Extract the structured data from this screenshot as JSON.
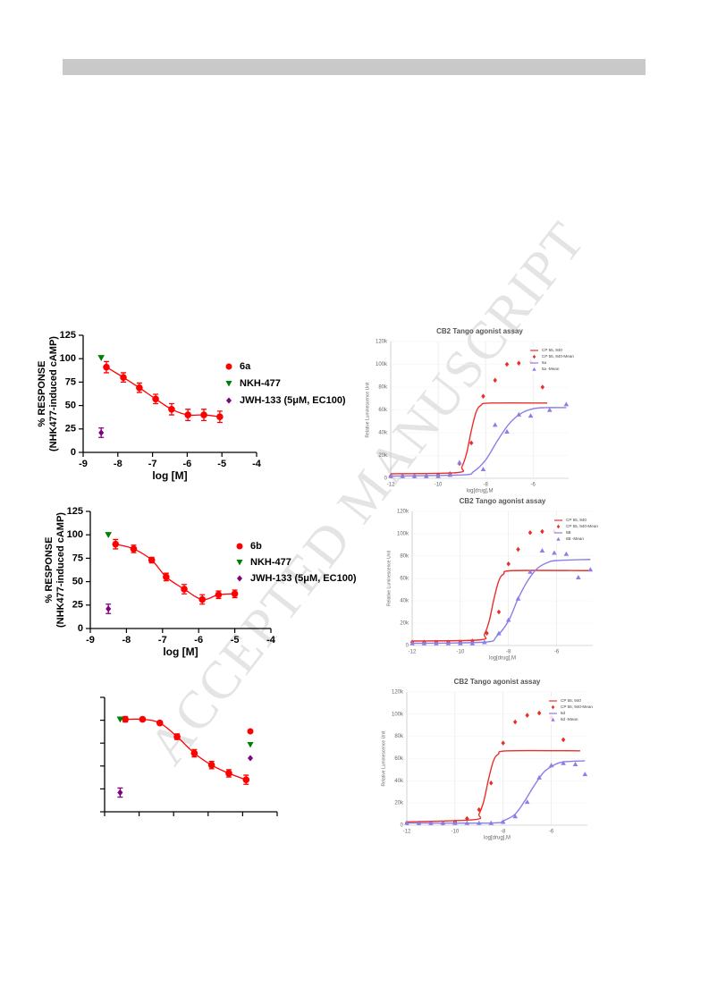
{
  "watermark": "ACCEPTED MANUSCRIPT",
  "chart_data": [
    {
      "type": "scatter",
      "xlabel": "log [M]",
      "ylabel": [
        "% RESPONSE",
        "(NHK477-induced cAMP)"
      ],
      "xlim": [
        -9,
        -4
      ],
      "ylim": [
        0,
        125
      ],
      "xticks": [
        -9,
        -8,
        -7,
        -6,
        -5,
        -4
      ],
      "yticks": [
        0,
        25,
        50,
        75,
        100,
        125
      ],
      "series": [
        {
          "name": "6a",
          "color": "#ff0000",
          "marker": "circle",
          "fit": true,
          "x": [
            -8.33,
            -7.84,
            -7.38,
            -6.91,
            -6.45,
            -5.98,
            -5.52,
            -5.06
          ],
          "values": [
            91,
            80,
            69,
            57,
            46,
            40,
            40,
            38
          ],
          "errors": [
            6,
            5,
            5,
            5,
            6,
            6,
            6,
            6
          ]
        },
        {
          "name": "NKH-477",
          "color": "#008000",
          "marker": "triangle-down",
          "x": [
            -8.48
          ],
          "values": [
            101
          ]
        },
        {
          "name": "JWH-133 (5μM, EC100)",
          "color": "#800080",
          "marker": "diamond",
          "x": [
            -8.48
          ],
          "values": [
            21
          ],
          "errors": [
            5
          ]
        }
      ]
    },
    {
      "type": "scatter",
      "title": "CB2 Tango agonist assay",
      "xlabel": "log[drug],M",
      "ylabel": "Relative Luminescence Unit",
      "xlim": [
        -12,
        -4.5
      ],
      "ylim": [
        0,
        120000
      ],
      "xticks": [
        -12,
        -10,
        -8,
        -6
      ],
      "yticks": [
        0,
        {
          "value": 20000,
          "label": "20k"
        },
        {
          "value": 40000,
          "label": "40k"
        },
        {
          "value": 60000,
          "label": "60k"
        },
        {
          "value": 80000,
          "label": "80k"
        },
        {
          "value": 100000,
          "label": "100k"
        },
        {
          "value": 120000,
          "label": "120k"
        }
      ],
      "grid": true,
      "series": [
        {
          "name": "CP 55, 940",
          "color": "#e8302a",
          "line": true,
          "x": [
            -12,
            -9.2,
            -9,
            -8.8,
            -8.6,
            -8.4,
            -8.2,
            -7.8,
            -5.4
          ],
          "values": [
            4000,
            5000,
            10000,
            22000,
            42000,
            58000,
            64000,
            66000,
            66000
          ]
        },
        {
          "name": "CP 55, 940-Mean",
          "color": "#e8302a",
          "marker": "diamond",
          "x": [
            -12,
            -11.5,
            -11,
            -10.5,
            -10,
            -9.5,
            -9.1,
            -8.6,
            -8.1,
            -7.6,
            -7.1,
            -6.6,
            -6.1,
            -5.6
          ],
          "values": [
            2000,
            2000,
            2000,
            2000,
            3000,
            4000,
            13000,
            31000,
            72000,
            86000,
            100000,
            101000,
            102000,
            80000
          ]
        },
        {
          "name": "6a",
          "color": "#8a7fe8",
          "line": true,
          "x": [
            -12,
            -9,
            -8.5,
            -8,
            -7.5,
            -7,
            -6.5,
            -6,
            -5.5,
            -4.6
          ],
          "values": [
            2000,
            3000,
            6000,
            16000,
            33000,
            48000,
            57000,
            61000,
            62000,
            62000
          ]
        },
        {
          "name": "6a -Mean",
          "color": "#8a7fe8",
          "marker": "triangle-up",
          "x": [
            -12,
            -11.5,
            -11,
            -10.5,
            -10,
            -9.5,
            -9.1,
            -8.1,
            -7.6,
            -7.1,
            -6.6,
            -6.1,
            -5.3,
            -4.6
          ],
          "values": [
            2000,
            2000,
            2000,
            2000,
            2000,
            3000,
            14000,
            8000,
            47000,
            41000,
            56000,
            55000,
            60000,
            65000
          ]
        }
      ]
    },
    {
      "type": "scatter",
      "xlabel": "log [M]",
      "ylabel": [
        "% RESPONSE",
        "(NHK477-induced cAMP)"
      ],
      "xlim": [
        -9,
        -4
      ],
      "ylim": [
        0,
        125
      ],
      "xticks": [
        -9,
        -8,
        -7,
        -6,
        -5,
        -4
      ],
      "yticks": [
        0,
        25,
        50,
        75,
        100,
        125
      ],
      "series": [
        {
          "name": "6b",
          "color": "#ff0000",
          "marker": "circle",
          "fit": true,
          "x": [
            -8.3,
            -7.8,
            -7.3,
            -6.9,
            -6.4,
            -5.9,
            -5.45,
            -5.0
          ],
          "values": [
            90,
            85,
            73,
            55,
            42,
            31,
            36,
            37
          ],
          "errors": [
            5,
            4,
            3,
            4,
            5,
            5,
            4,
            4
          ]
        },
        {
          "name": "NKH-477",
          "color": "#008000",
          "marker": "triangle-down",
          "x": [
            -8.5
          ],
          "values": [
            100
          ]
        },
        {
          "name": "JWH-133 (5μM, EC100)",
          "color": "#800080",
          "marker": "diamond",
          "x": [
            -8.5
          ],
          "values": [
            21
          ],
          "errors": [
            5
          ]
        }
      ]
    },
    {
      "type": "scatter",
      "title": "CB2 Tango agonist assay",
      "xlabel": "log[drug],M",
      "ylabel": "Relative Luminescence Unit",
      "xlim": [
        -12,
        -4.5
      ],
      "ylim": [
        0,
        120000
      ],
      "xticks": [
        -12,
        -10,
        -8,
        -6
      ],
      "yticks": [
        0,
        {
          "value": 20000,
          "label": "20k"
        },
        {
          "value": 40000,
          "label": "40k"
        },
        {
          "value": 60000,
          "label": "60k"
        },
        {
          "value": 80000,
          "label": "80k"
        },
        {
          "value": 100000,
          "label": "100k"
        },
        {
          "value": 120000,
          "label": "120k"
        }
      ],
      "grid": true,
      "series": [
        {
          "name": "CP 55, 940",
          "color": "#e8302a",
          "line": true,
          "x": [
            -12,
            -9.2,
            -9,
            -8.8,
            -8.6,
            -8.4,
            -8.2,
            -7.8,
            -4.6
          ],
          "values": [
            4000,
            5000,
            10000,
            22000,
            42000,
            58000,
            64000,
            67000,
            67000
          ]
        },
        {
          "name": "CP 55, 940-Mean",
          "color": "#e8302a",
          "marker": "diamond",
          "x": [
            -12,
            -11.5,
            -11,
            -10.5,
            -10,
            -9.5,
            -8.9,
            -8.4,
            -8,
            -7.6,
            -7.1,
            -6.6,
            -6.1
          ],
          "values": [
            3000,
            3000,
            3000,
            3000,
            3000,
            4000,
            11000,
            30000,
            73000,
            86000,
            101000,
            102000,
            102000
          ]
        },
        {
          "name": "6B",
          "color": "#8a7fe8",
          "line": true,
          "x": [
            -12,
            -9,
            -8.5,
            -8,
            -7.6,
            -7.2,
            -6.8,
            -6.4,
            -6,
            -4.6
          ],
          "values": [
            2000,
            3000,
            8000,
            22000,
            42000,
            58000,
            69000,
            74000,
            76000,
            77000
          ]
        },
        {
          "name": "6B -Mean",
          "color": "#8a7fe8",
          "marker": "triangle-up",
          "x": [
            -12,
            -11.5,
            -11,
            -10.5,
            -10,
            -9.5,
            -9,
            -8.4,
            -8,
            -7.6,
            -7.1,
            -6.6,
            -6.1,
            -5.6,
            -5.1,
            -4.6
          ],
          "values": [
            2000,
            2000,
            2000,
            2000,
            2000,
            2000,
            3000,
            11000,
            23000,
            42000,
            66000,
            85000,
            83000,
            82000,
            61000,
            68000
          ]
        }
      ]
    },
    {
      "type": "scatter",
      "tick_labels": false,
      "xlim": [
        -9,
        -4
      ],
      "ylim": [
        0,
        125
      ],
      "xticks": [
        -9,
        -8,
        -7,
        -6,
        -5,
        -4
      ],
      "yticks": [
        0,
        25,
        50,
        75,
        100,
        125
      ],
      "series": [
        {
          "name": null,
          "color": "#ff0000",
          "marker": "circle",
          "fit": true,
          "x": [
            -8.4,
            -7.9,
            -7.4,
            -6.9,
            -6.4,
            -5.9,
            -5.4,
            -4.9
          ],
          "values": [
            101,
            101,
            97,
            82,
            64,
            51,
            42,
            35
          ],
          "errors": [
            3,
            2,
            2,
            3,
            4,
            4,
            4,
            5
          ]
        },
        {
          "name": null,
          "color": "#008000",
          "marker": "triangle-down",
          "x": [
            -8.55
          ],
          "values": [
            101
          ]
        },
        {
          "name": null,
          "color": "#800080",
          "marker": "diamond",
          "x": [
            -8.55
          ],
          "values": [
            21
          ],
          "errors": [
            5
          ]
        }
      ]
    },
    {
      "type": "scatter",
      "title": "CB2 Tango agonist assay",
      "xlabel": "log[drug],M",
      "ylabel": "Relative Luminescence Unit",
      "xlim": [
        -12,
        -4.5
      ],
      "ylim": [
        0,
        120000
      ],
      "xticks": [
        -12,
        -10,
        -8,
        -6
      ],
      "yticks": [
        0,
        {
          "value": 20000,
          "label": "20k"
        },
        {
          "value": 40000,
          "label": "40k"
        },
        {
          "value": 60000,
          "label": "60k"
        },
        {
          "value": 80000,
          "label": "80k"
        },
        {
          "value": 100000,
          "label": "100k"
        },
        {
          "value": 120000,
          "label": "120k"
        }
      ],
      "grid": true,
      "series": [
        {
          "name": "CP 55, 940",
          "color": "#e8302a",
          "line": true,
          "x": [
            -12,
            -9.2,
            -9,
            -8.8,
            -8.6,
            -8.4,
            -8.2,
            -7.8,
            -4.8
          ],
          "values": [
            3000,
            5000,
            10000,
            22000,
            42000,
            58000,
            64000,
            67000,
            67000
          ]
        },
        {
          "name": "CP 55, 940-Mean",
          "color": "#e8302a",
          "marker": "diamond",
          "x": [
            -12,
            -11.5,
            -11,
            -10.5,
            -10,
            -9.5,
            -9,
            -8.5,
            -8,
            -7.5,
            -7,
            -6.5,
            -6,
            -5.5
          ],
          "values": [
            2000,
            2000,
            2000,
            2000,
            3000,
            6000,
            14000,
            38000,
            74000,
            93000,
            99000,
            101000,
            97000,
            77000
          ]
        },
        {
          "name": "6d",
          "color": "#8a7fe8",
          "line": true,
          "x": [
            -12,
            -8.5,
            -8,
            -7.5,
            -7.1,
            -6.7,
            -6.3,
            -5.9,
            -5.5,
            -4.6
          ],
          "values": [
            2000,
            2000,
            4000,
            10000,
            22000,
            36000,
            48000,
            54000,
            57000,
            58000
          ]
        },
        {
          "name": "6d -Mean",
          "color": "#8a7fe8",
          "marker": "triangle-up",
          "x": [
            -12,
            -11.5,
            -11,
            -10.5,
            -10,
            -9.5,
            -9,
            -8.5,
            -8,
            -7.5,
            -7,
            -6.5,
            -6,
            -5.5,
            -5,
            -4.6
          ],
          "values": [
            2000,
            2000,
            2000,
            2000,
            2000,
            2000,
            2000,
            2000,
            3000,
            8000,
            21000,
            43000,
            54000,
            56000,
            55000,
            46000
          ]
        }
      ]
    }
  ]
}
